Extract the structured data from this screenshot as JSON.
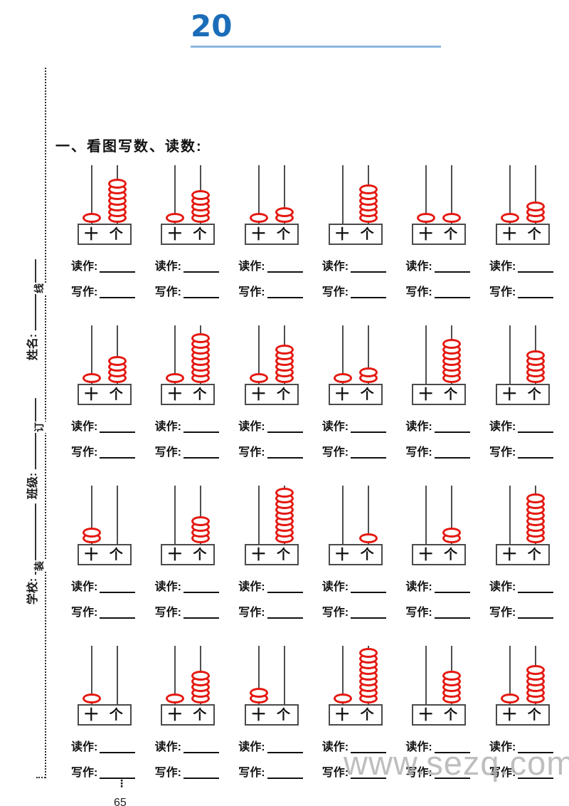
{
  "page": {
    "lesson_number": "20",
    "section_heading": "一、看图写数、读数:",
    "read_label": "读作:",
    "write_label": "写作:",
    "tens_label": "十",
    "ones_label": "个",
    "watermark": "www.sezq.com",
    "footer_dots": "⋮",
    "page_number": "65"
  },
  "binding_margin": {
    "name_label": "姓名:",
    "class_label": "班级:",
    "school_label": "学校:",
    "line_char": "线",
    "staple_char": "订",
    "bind_char": "装"
  },
  "colors": {
    "title_blue": "#1b6db8",
    "title_underline": "#8ab6e0",
    "bead_red": "#e41911",
    "watermark_gray": "#b0afae"
  },
  "abacus_grid": {
    "rows": [
      [
        {
          "tens": 1,
          "ones": 7,
          "value": 17
        },
        {
          "tens": 1,
          "ones": 5,
          "value": 15
        },
        {
          "tens": 1,
          "ones": 2,
          "value": 12
        },
        {
          "tens": 0,
          "ones": 6,
          "value": 6
        },
        {
          "tens": 1,
          "ones": 1,
          "value": 11
        },
        {
          "tens": 1,
          "ones": 3,
          "value": 13
        }
      ],
      [
        {
          "tens": 1,
          "ones": 4,
          "value": 14
        },
        {
          "tens": 1,
          "ones": 8,
          "value": 18
        },
        {
          "tens": 1,
          "ones": 6,
          "value": 16
        },
        {
          "tens": 1,
          "ones": 2,
          "value": 12
        },
        {
          "tens": 0,
          "ones": 7,
          "value": 7
        },
        {
          "tens": 0,
          "ones": 5,
          "value": 5
        }
      ],
      [
        {
          "tens": 2,
          "ones": 0,
          "value": 20
        },
        {
          "tens": 0,
          "ones": 4,
          "value": 4
        },
        {
          "tens": 0,
          "ones": 9,
          "value": 9
        },
        {
          "tens": 0,
          "ones": 1,
          "value": 1
        },
        {
          "tens": 0,
          "ones": 2,
          "value": 2
        },
        {
          "tens": 0,
          "ones": 8,
          "value": 8
        }
      ],
      [
        {
          "tens": 1,
          "ones": 0,
          "value": 10
        },
        {
          "tens": 1,
          "ones": 5,
          "value": 15
        },
        {
          "tens": 2,
          "ones": 0,
          "value": 20
        },
        {
          "tens": 1,
          "ones": 9,
          "value": 19
        },
        {
          "tens": 0,
          "ones": 5,
          "value": 5
        },
        {
          "tens": 1,
          "ones": 6,
          "value": 16
        }
      ]
    ]
  }
}
